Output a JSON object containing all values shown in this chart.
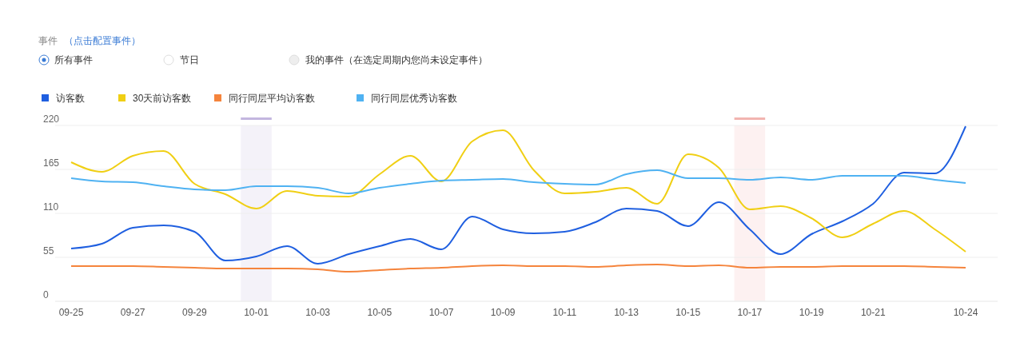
{
  "chart_data": {
    "type": "line",
    "annotations": [
      "事件",
      "（点击配置事件）",
      "所有事件",
      "节日",
      "我的事件（在选定周期内您尚未设定事件）"
    ],
    "categories": [
      "09-25",
      null,
      "09-27",
      null,
      "09-29",
      null,
      "10-01",
      null,
      "10-03",
      null,
      "10-05",
      null,
      "10-07",
      null,
      "10-09",
      null,
      "10-11",
      null,
      "10-13",
      null,
      "10-15",
      null,
      "10-17",
      null,
      "10-19",
      null,
      "10-21",
      null,
      null,
      "10-24"
    ],
    "series": [
      {
        "name": "访客数",
        "color": "#1f5fe0",
        "values": [
          66,
          72,
          92,
          95,
          87,
          51,
          56,
          69,
          47,
          59,
          69,
          78,
          65,
          106,
          90,
          85,
          87,
          99,
          116,
          113,
          94,
          124,
          90,
          59,
          84,
          100,
          122,
          161,
          160,
          219
        ]
      },
      {
        "name": "30天前访客数",
        "color": "#f0cf14",
        "values": [
          174,
          162,
          182,
          188,
          147,
          134,
          116,
          138,
          132,
          131,
          159,
          182,
          150,
          200,
          214,
          164,
          135,
          137,
          142,
          122,
          184,
          167,
          115,
          119,
          104,
          80,
          97,
          113,
          90,
          62
        ]
      },
      {
        "name": "同行同层平均访客数",
        "color": "#f5843c",
        "values": [
          44,
          44,
          44,
          43,
          42,
          41,
          41,
          41,
          40,
          37,
          39,
          41,
          42,
          44,
          45,
          44,
          44,
          43,
          45,
          46,
          44,
          45,
          42,
          43,
          43,
          44,
          44,
          44,
          43,
          42
        ]
      },
      {
        "name": "同行同层优秀访客数",
        "color": "#4fb2f2",
        "values": [
          154,
          150,
          149,
          144,
          140,
          139,
          144,
          144,
          142,
          135,
          142,
          147,
          151,
          152,
          153,
          149,
          147,
          146,
          159,
          164,
          154,
          154,
          152,
          155,
          152,
          157,
          157,
          157,
          152,
          148
        ]
      }
    ],
    "ylim": [
      0,
      220
    ],
    "yticks": [
      0,
      55,
      110,
      165,
      220
    ],
    "grid": "y",
    "legend": "top left",
    "bands": [
      {
        "axis": "x",
        "from": "10-01",
        "to": "10-01",
        "color": "#c3b6df"
      },
      {
        "axis": "x",
        "from": "10-17",
        "to": "10-17",
        "color": "#f2b4b0"
      }
    ]
  }
}
